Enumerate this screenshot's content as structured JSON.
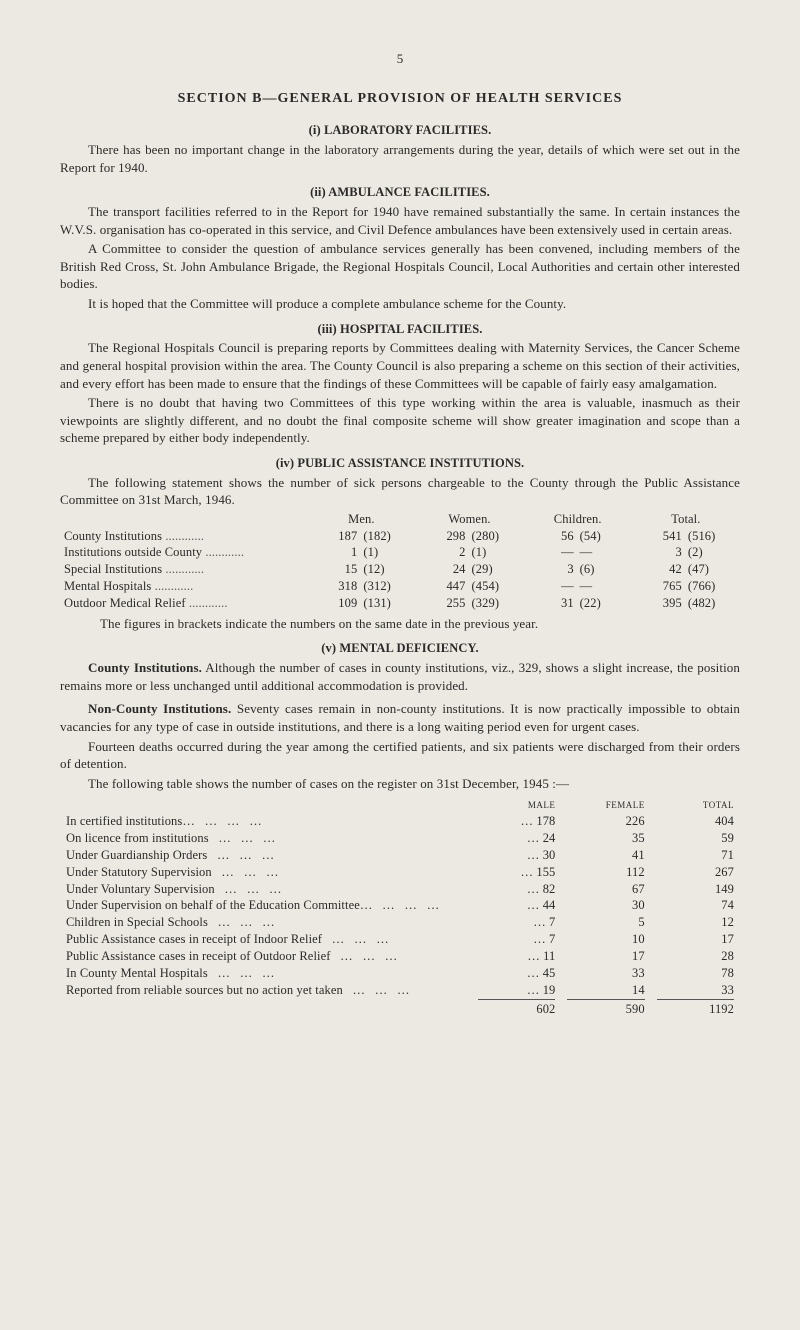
{
  "page_number": "5",
  "section_title": "SECTION  B—GENERAL  PROVISION  OF  HEALTH  SERVICES",
  "lab": {
    "heading": "(i) LABORATORY FACILITIES.",
    "p1": "There has been no important change in the laboratory arrangements during the year, details of which were set out in the Report for 1940."
  },
  "amb": {
    "heading": "(ii) AMBULANCE FACILITIES.",
    "p1": "The transport facilities referred to in the Report for 1940 have remained substantially the same.   In certain instances the W.V.S. organisation has co-operated in this service, and Civil Defence ambulances have been extensively used in certain areas.",
    "p2": "A Committee to consider the question of ambulance services generally has been convened, including members of the British Red Cross, St. John Ambulance Brigade, the Regional Hospitals Council, Local Authorities and certain other interested bodies.",
    "p3": "It is hoped that the Committee will produce a complete ambulance scheme for the County."
  },
  "hosp": {
    "heading": "(iii) HOSPITAL FACILITIES.",
    "p1": "The Regional Hospitals Council is preparing reports by Committees dealing with Maternity Services, the Cancer Scheme and general hospital provision within the area. The County Council is also preparing a scheme on this section of their activities, and every effort has been made to ensure that the findings of these Committees will be capable of fairly easy amalgamation.",
    "p2": "There is no doubt that having two Committees of this type working within the area is valuable, inasmuch as their viewpoints are slightly different, and no doubt the final composite scheme will show greater imagination and scope than a scheme prepared by either body independently."
  },
  "pai": {
    "heading": "(iv) PUBLIC ASSISTANCE INSTITUTIONS.",
    "p1": "The following statement shows the number of sick persons chargeable to the County through the Public Assistance Committee on 31st March, 1946.",
    "headers": {
      "c1": "Men.",
      "c2": "Women.",
      "c3": "Children.",
      "c4": "Total."
    },
    "rows": [
      {
        "label": "County Institutions",
        "m": "187",
        "mp": "(182)",
        "w": "298",
        "wp": "(280)",
        "c": "56",
        "cp": "(54)",
        "t": "541",
        "tp": "(516)"
      },
      {
        "label": "Institutions outside County",
        "m": "1",
        "mp": "(1)",
        "w": "2",
        "wp": "(1)",
        "c": "—",
        "cp": "—",
        "t": "3",
        "tp": "(2)"
      },
      {
        "label": "Special Institutions",
        "m": "15",
        "mp": "(12)",
        "w": "24",
        "wp": "(29)",
        "c": "3",
        "cp": "(6)",
        "t": "42",
        "tp": "(47)"
      },
      {
        "label": "Mental Hospitals",
        "m": "318",
        "mp": "(312)",
        "w": "447",
        "wp": "(454)",
        "c": "—",
        "cp": "—",
        "t": "765",
        "tp": "(766)"
      },
      {
        "label": "Outdoor Medical Relief",
        "m": "109",
        "mp": "(131)",
        "w": "255",
        "wp": "(329)",
        "c": "31",
        "cp": "(22)",
        "t": "395",
        "tp": "(482)"
      }
    ],
    "footnote": "The figures in brackets indicate the numbers on the same date in the previous year."
  },
  "md": {
    "heading": "(v) MENTAL DEFICIENCY.",
    "county_label": "County Institutions.",
    "county_text": "   Although the number of cases in county institutions, viz., 329, shows a slight increase, the position remains more or less unchanged until additional accommodation is provided.",
    "nonc_label": "Non-County  Institutions.",
    "nonc_text": "   Seventy  cases  remain  in  non-county  institutions. It is now practically impossible to obtain vacancies for any type of case in outside institutions, and there is a long waiting period even for urgent cases.",
    "p3": "Fourteen deaths occurred during the year among the certified patients, and six patients were discharged from their orders of detention.",
    "p4": "The following table shows the number of cases on the register on 31st December, 1945 :—",
    "reg_headers": {
      "c1": "male",
      "c2": "female",
      "c3": "total"
    },
    "reg_rows": [
      {
        "desc": "In certified institutions…",
        "m": "178",
        "f": "226",
        "t": "404"
      },
      {
        "desc": "On licence from institutions",
        "m": "24",
        "f": "35",
        "t": "59"
      },
      {
        "desc": "Under Guardianship Orders",
        "m": "30",
        "f": "41",
        "t": "71"
      },
      {
        "desc": "Under Statutory Supervision",
        "m": "155",
        "f": "112",
        "t": "267"
      },
      {
        "desc": "Under Voluntary Supervision",
        "m": "82",
        "f": "67",
        "t": "149"
      },
      {
        "desc": "Under Supervision on behalf of the Education Committee…",
        "m": "44",
        "f": "30",
        "t": "74"
      },
      {
        "desc": "Children in Special Schools",
        "m": "7",
        "f": "5",
        "t": "12"
      },
      {
        "desc": "Public Assistance cases in receipt of Indoor Relief",
        "m": "7",
        "f": "10",
        "t": "17"
      },
      {
        "desc": "Public Assistance cases in receipt of Outdoor Relief",
        "m": "11",
        "f": "17",
        "t": "28"
      },
      {
        "desc": "In County Mental Hospitals",
        "m": "45",
        "f": "33",
        "t": "78"
      },
      {
        "desc": "Reported from reliable sources but no action yet taken",
        "m": "19",
        "f": "14",
        "t": "33"
      }
    ],
    "totals": {
      "m": "602",
      "f": "590",
      "t": "1192"
    }
  }
}
